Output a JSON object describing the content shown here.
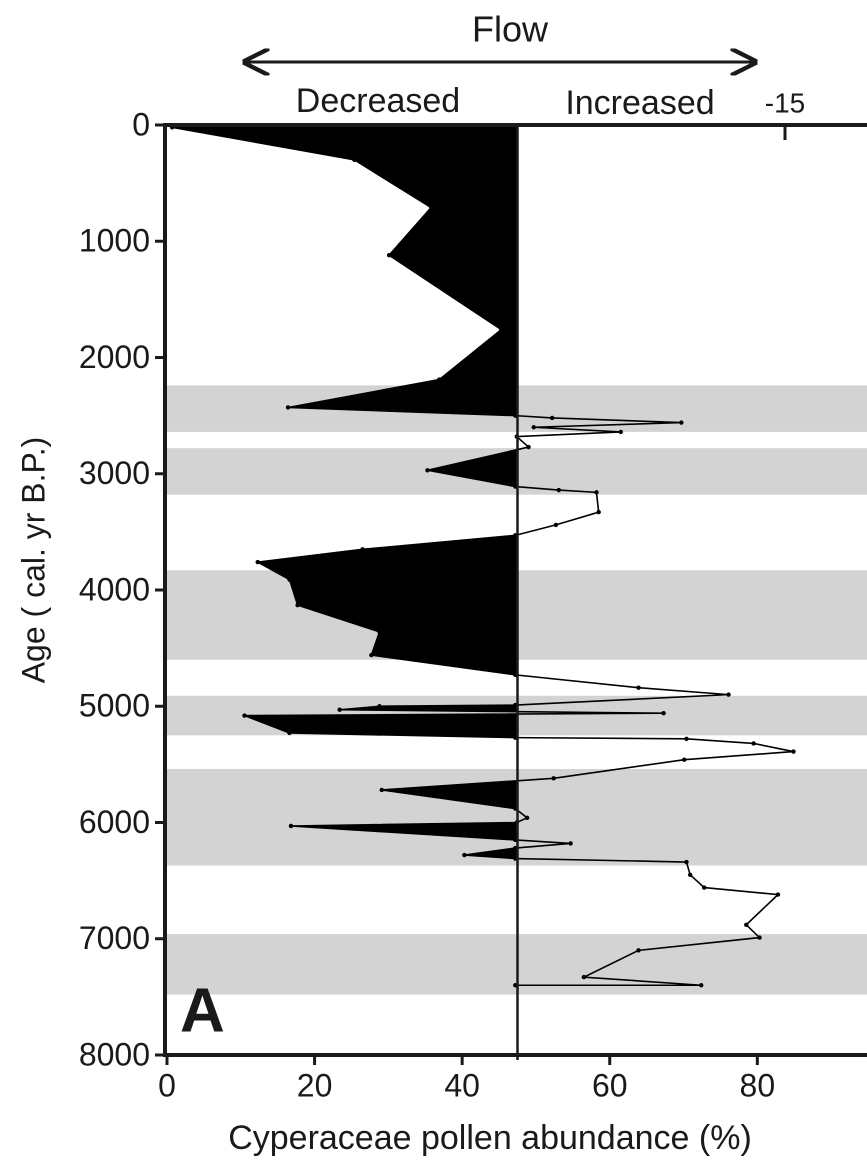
{
  "chart_data": {
    "type": "line",
    "annotations": {
      "flow": "Flow",
      "decreased": "Decreased",
      "increased": "Increased",
      "top_tick": "-15",
      "panel": "A"
    },
    "x_label": "Cyperaceae pollen abundance (%)",
    "y_label": "Age ( cal. yr B.P.)",
    "ages": [
      20,
      300,
      710,
      1120,
      1760,
      2190,
      2430,
      2500,
      2520,
      2560,
      2600,
      2640,
      2680,
      2770,
      2970,
      3110,
      3140,
      3160,
      3330,
      3440,
      3530,
      3650,
      3760,
      3910,
      4130,
      4360,
      4560,
      4730,
      4840,
      4900,
      4990,
      5000,
      5030,
      5060,
      5080,
      5230,
      5270,
      5280,
      5320,
      5390,
      5460,
      5620,
      5720,
      5880,
      5960,
      6000,
      6030,
      6150,
      6180,
      6220,
      6280,
      6310,
      6340,
      6450,
      6560,
      6620,
      6880,
      6990,
      7100,
      7330,
      7400,
      7400
    ],
    "series": [
      {
        "color": "#000000",
        "values": [
          0.7,
          25.4,
          35.8,
          30.1,
          45.3,
          36.9,
          16.4,
          47.2,
          52.2,
          69.7,
          49.7,
          61.5,
          47.4,
          49,
          35.3,
          47.2,
          53.1,
          58.2,
          58.5,
          52.7,
          47.2,
          26.5,
          12.3,
          16.6,
          17.7,
          28.8,
          27.7,
          47.2,
          63.9,
          76.1,
          47.2,
          28.8,
          23.4,
          67.3,
          10.5,
          16.6,
          47.2,
          70.4,
          79.5,
          84.9,
          70.1,
          52.4,
          29.1,
          47.2,
          48.8,
          47.4,
          16.8,
          47.2,
          54.7,
          47.2,
          40.3,
          47.2,
          70.4,
          70.9,
          72.8,
          82.8,
          78.5,
          80.3,
          63.9,
          56.5,
          72.4,
          47.2
        ]
      }
    ],
    "baseline": 47.5,
    "fill_color": "#000000",
    "shaded_bands": [
      [
        2240,
        2640
      ],
      [
        2780,
        3180
      ],
      [
        3830,
        4600
      ],
      [
        4910,
        5250
      ],
      [
        5540,
        6370
      ],
      [
        6960,
        7480
      ]
    ],
    "band_color": "#d3d3d3",
    "xlim": [
      0,
      95
    ],
    "xticks": [
      0,
      20,
      40,
      60,
      80
    ],
    "ylim": [
      0,
      8000
    ],
    "yticks": [
      0,
      1000,
      2000,
      3000,
      4000,
      5000,
      6000,
      7000,
      8000
    ],
    "y_inverted": true
  }
}
